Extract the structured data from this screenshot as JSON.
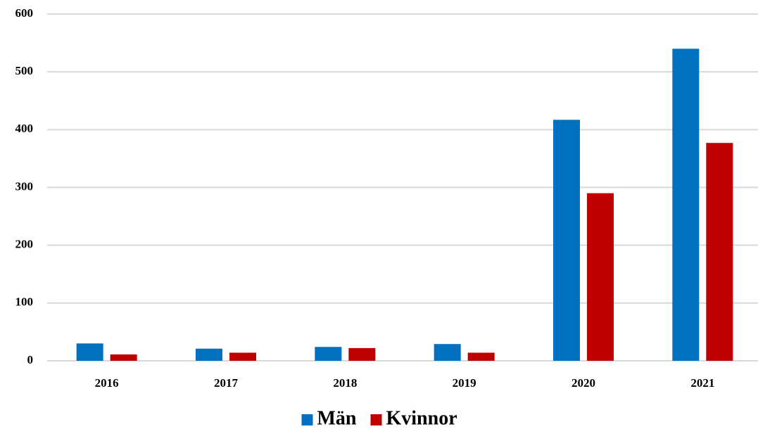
{
  "chart_data": {
    "type": "bar",
    "categories": [
      "2016",
      "2017",
      "2018",
      "2019",
      "2020",
      "2021"
    ],
    "series": [
      {
        "name": "Män",
        "color": "#0070c0",
        "values": [
          30,
          21,
          24,
          29,
          417,
          540
        ]
      },
      {
        "name": "Kvinnor",
        "color": "#c00000",
        "values": [
          11,
          14,
          22,
          14,
          290,
          377
        ]
      }
    ],
    "ylim": [
      0,
      600
    ],
    "yticks": [
      0,
      100,
      200,
      300,
      400,
      500,
      600
    ],
    "grid": true,
    "legend": "bottom"
  }
}
